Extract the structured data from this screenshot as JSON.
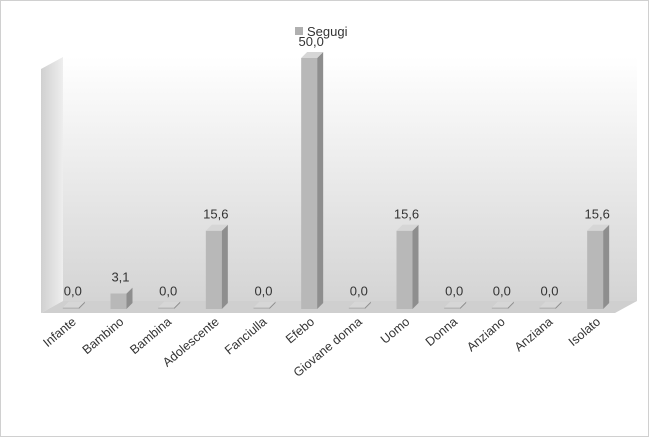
{
  "chart_data": {
    "type": "bar",
    "title": "",
    "xlabel": "",
    "ylabel": "",
    "ylim": [
      0,
      50
    ],
    "grid": false,
    "legend": "top",
    "categories": [
      "Infante",
      "Bambino",
      "Bambina",
      "Adolescente",
      "Fanciulla",
      "Efebo",
      "Giovane donna",
      "Uomo",
      "Donna",
      "Anziano",
      "Anziana",
      "Isolato"
    ],
    "series": [
      {
        "name": "Segugi",
        "values": [
          0.0,
          3.1,
          0.0,
          15.6,
          0.0,
          50.0,
          0.0,
          15.6,
          0.0,
          0.0,
          0.0,
          15.6
        ],
        "value_labels": [
          "0,0",
          "3,1",
          "0,0",
          "15,6",
          "0,0",
          "50,0",
          "0,0",
          "15,6",
          "0,0",
          "0,0",
          "0,0",
          "15,6"
        ]
      }
    ],
    "colors": {
      "bar_front": "#b8b8b8",
      "bar_side": "#8e8e8e",
      "bar_top": "#d6d6d6",
      "legend_swatch": "#b0b0b0"
    }
  }
}
